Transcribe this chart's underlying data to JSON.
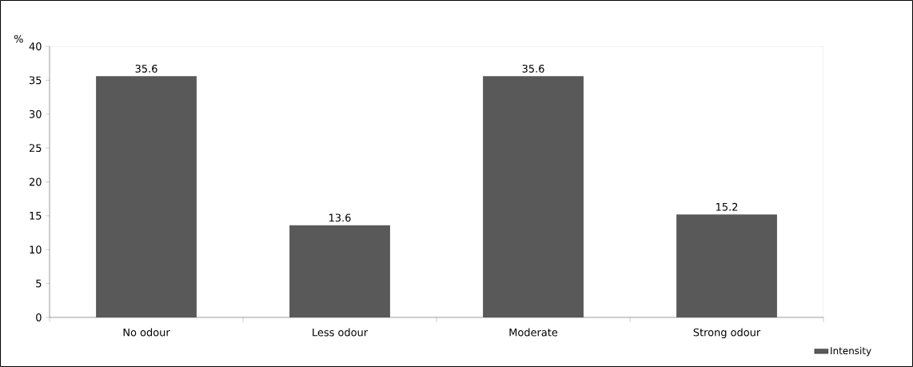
{
  "chart_data": {
    "type": "bar",
    "ylabel": "%",
    "categories": [
      "No odour",
      "Less odour",
      "Moderate",
      "Strong odour"
    ],
    "series": [
      {
        "name": "Intensity",
        "color": "#595959",
        "values": [
          35.6,
          13.6,
          35.6,
          15.2
        ]
      }
    ],
    "ylim": [
      0,
      40
    ],
    "yticks": [
      0,
      5,
      10,
      15,
      20,
      25,
      30,
      35,
      40
    ],
    "data_labels": true,
    "grid": false,
    "legend": "bottom right"
  }
}
